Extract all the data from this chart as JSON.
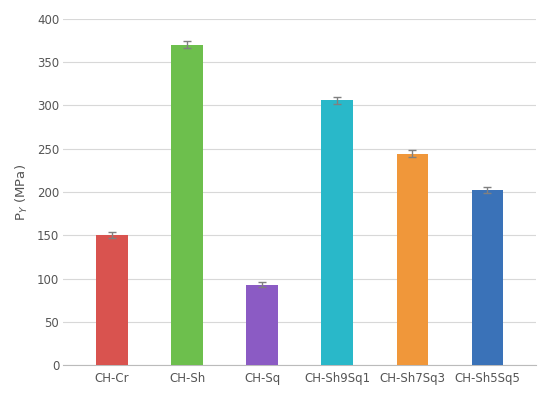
{
  "categories": [
    "CH-Cr",
    "CH-Sh",
    "CH-Sq",
    "CH-Sh9Sq1",
    "CH-Sh7Sq3",
    "CH-Sh5Sq5"
  ],
  "values": [
    150.0,
    370.0,
    93.0,
    306.0,
    244.0,
    202.0
  ],
  "errors": [
    3.5,
    4.0,
    3.0,
    4.0,
    4.0,
    3.5
  ],
  "bar_colors": [
    "#d9534f",
    "#6dbf4d",
    "#8b5bc4",
    "#29b8c9",
    "#f0973a",
    "#3a72b8"
  ],
  "ylabel": "P$_Y$ (MPa)",
  "ylim": [
    0,
    400
  ],
  "yticks": [
    0,
    50,
    100,
    150,
    200,
    250,
    300,
    350,
    400
  ],
  "background_color": "#ffffff",
  "grid_color": "#d8d8d8",
  "bar_width": 0.42,
  "figsize": [
    5.5,
    3.99
  ],
  "dpi": 100
}
